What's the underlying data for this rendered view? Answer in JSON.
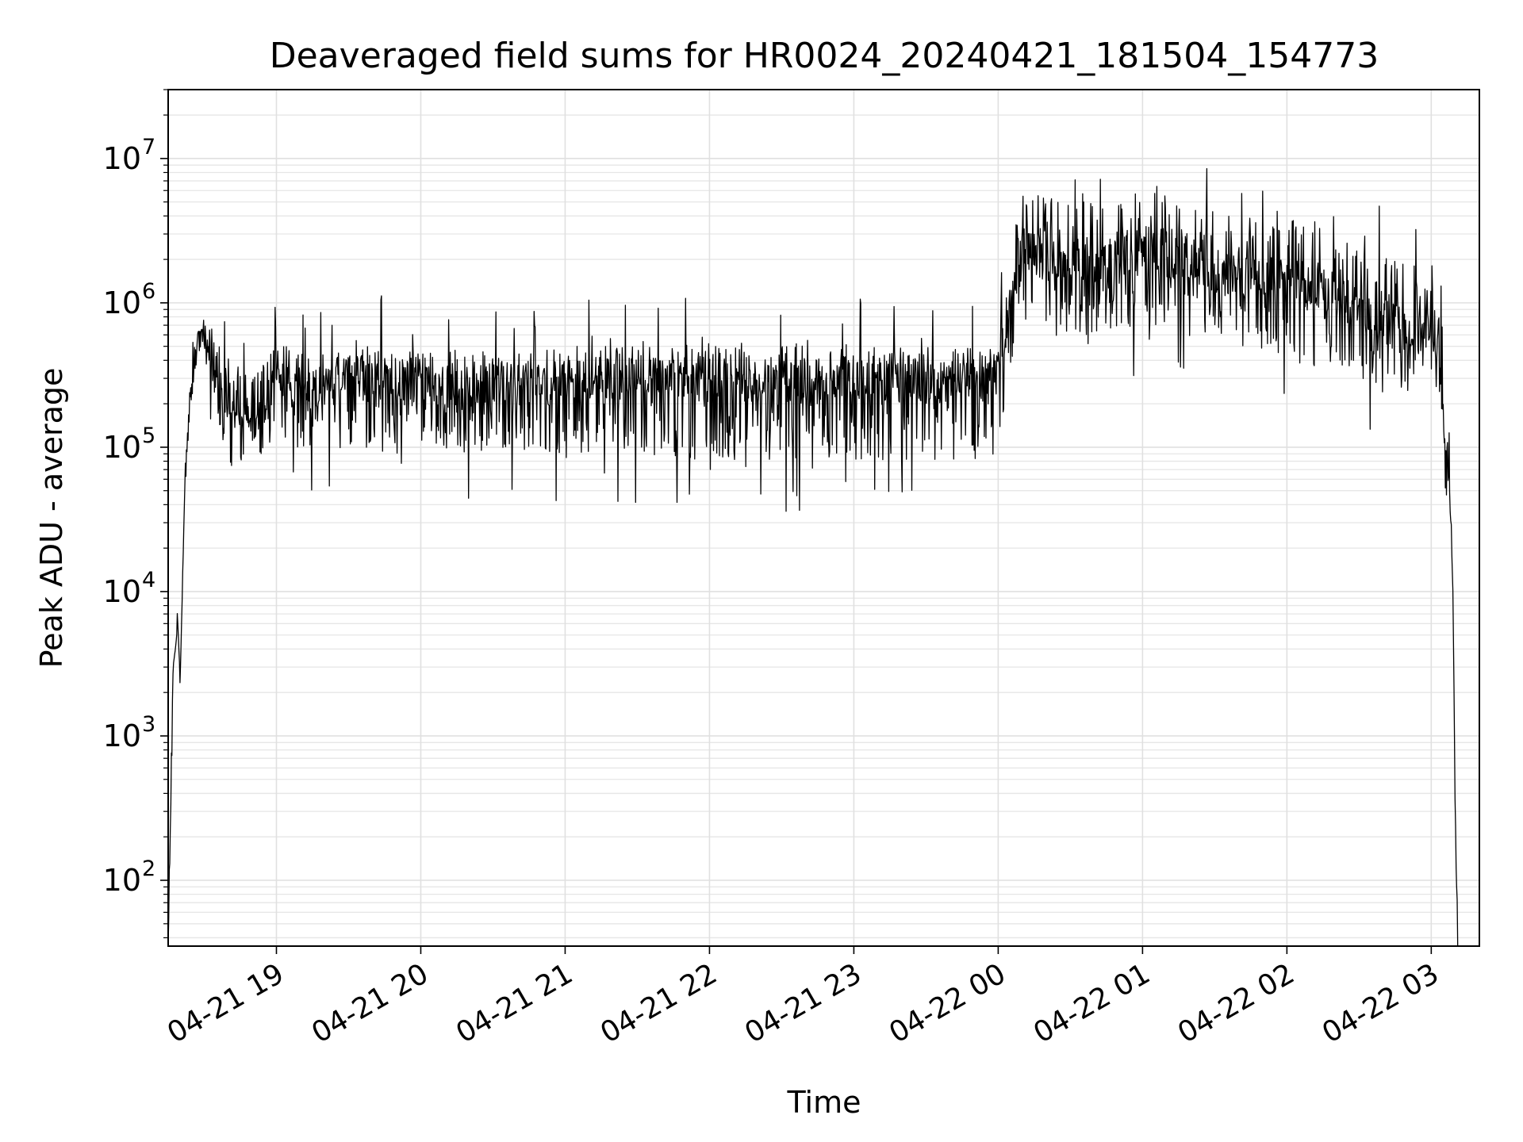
{
  "chart_data": {
    "type": "line",
    "title": "Deaveraged field sums for HR0024_20240421_181504_154773",
    "xlabel": "Time",
    "ylabel": "Peak ADU - average",
    "yscale": "log",
    "xlim": [
      "2024-04-21 18:15",
      "2024-04-22 03:20"
    ],
    "ylim": [
      35,
      30000000
    ],
    "grid": true,
    "line_color": "#000000",
    "x_ticks": [
      {
        "t": "2024-04-21 19:00",
        "label": "04-21 19"
      },
      {
        "t": "2024-04-21 20:00",
        "label": "04-21 20"
      },
      {
        "t": "2024-04-21 21:00",
        "label": "04-21 21"
      },
      {
        "t": "2024-04-21 22:00",
        "label": "04-21 22"
      },
      {
        "t": "2024-04-21 23:00",
        "label": "04-21 23"
      },
      {
        "t": "2024-04-22 00:00",
        "label": "04-22 00"
      },
      {
        "t": "2024-04-22 01:00",
        "label": "04-22 01"
      },
      {
        "t": "2024-04-22 02:00",
        "label": "04-22 02"
      },
      {
        "t": "2024-04-22 03:00",
        "label": "04-22 03"
      }
    ],
    "y_ticks": [
      {
        "value": 100,
        "label": "10",
        "exp": "2"
      },
      {
        "value": 1000,
        "label": "10",
        "exp": "3"
      },
      {
        "value": 10000,
        "label": "10",
        "exp": "4"
      },
      {
        "value": 100000,
        "label": "10",
        "exp": "5"
      },
      {
        "value": 1000000,
        "label": "10",
        "exp": "6"
      },
      {
        "value": 10000000,
        "label": "10",
        "exp": "7"
      }
    ],
    "series": [
      {
        "x": [
          "2024-04-21 18:15",
          "2024-04-21 18:16",
          "2024-04-21 18:17",
          "2024-04-21 18:18",
          "2024-04-21 18:19",
          "2024-04-21 18:20",
          "2024-04-21 18:22",
          "2024-04-21 18:24",
          "2024-04-21 18:27",
          "2024-04-21 18:30",
          "2024-04-21 18:33",
          "2024-04-21 18:36",
          "2024-04-21 18:40",
          "2024-04-21 18:45",
          "2024-04-21 18:50",
          "2024-04-21 18:55",
          "2024-04-21 19:00",
          "2024-04-21 19:05",
          "2024-04-21 19:10",
          "2024-04-21 19:20",
          "2024-04-21 19:30",
          "2024-04-21 19:45",
          "2024-04-21 20:00",
          "2024-04-21 20:15",
          "2024-04-21 20:30",
          "2024-04-21 20:45",
          "2024-04-21 21:00",
          "2024-04-21 21:30",
          "2024-04-21 22:00",
          "2024-04-21 22:30",
          "2024-04-21 23:00",
          "2024-04-21 23:30",
          "2024-04-21 23:50",
          "2024-04-22 00:00",
          "2024-04-22 00:05",
          "2024-04-22 00:10",
          "2024-04-22 00:20",
          "2024-04-22 00:40",
          "2024-04-22 01:00",
          "2024-04-22 01:20",
          "2024-04-22 01:40",
          "2024-04-22 02:00",
          "2024-04-22 02:15",
          "2024-04-22 02:30",
          "2024-04-22 02:45",
          "2024-04-22 02:55",
          "2024-04-22 03:00",
          "2024-04-22 03:03",
          "2024-04-22 03:06",
          "2024-04-22 03:08",
          "2024-04-22 03:09",
          "2024-04-22 03:10",
          "2024-04-22 03:11"
        ],
        "y": [
          35,
          250,
          3000,
          4000,
          6000,
          2500,
          60000,
          200000,
          550000,
          600000,
          450000,
          250000,
          200000,
          180000,
          150000,
          200000,
          250000,
          280000,
          250000,
          250000,
          300000,
          280000,
          280000,
          260000,
          270000,
          280000,
          280000,
          300000,
          320000,
          280000,
          300000,
          280000,
          300000,
          320000,
          1000000,
          2500000,
          2000000,
          1800000,
          2500000,
          2000000,
          1500000,
          1500000,
          1200000,
          900000,
          700000,
          600000,
          800000,
          500000,
          100000,
          50000,
          10000,
          300,
          35
        ],
        "lower": [
          35,
          250,
          3000,
          4000,
          6000,
          2500,
          60000,
          150000,
          450000,
          500000,
          300000,
          130000,
          100000,
          80000,
          90000,
          90000,
          100000,
          90000,
          90000,
          100000,
          90000,
          90000,
          90000,
          90000,
          90000,
          90000,
          90000,
          90000,
          80000,
          80000,
          80000,
          80000,
          80000,
          100000,
          350000,
          800000,
          600000,
          550000,
          700000,
          600000,
          500000,
          400000,
          350000,
          300000,
          250000,
          250000,
          250000,
          200000,
          40000,
          30000,
          10000,
          300,
          35
        ],
        "upper": [
          35,
          250,
          3000,
          4000,
          6000,
          2500,
          60000,
          260000,
          650000,
          700000,
          700000,
          550000,
          500000,
          450000,
          400000,
          480000,
          500000,
          500000,
          450000,
          480000,
          500000,
          500000,
          500000,
          480000,
          500000,
          500000,
          500000,
          500000,
          550000,
          500000,
          520000,
          480000,
          500000,
          500000,
          2500000,
          6000000,
          5500000,
          5000000,
          6000000,
          5000000,
          4000000,
          4000000,
          3500000,
          2500000,
          2000000,
          1800000,
          2200000,
          1400000,
          300000,
          150000,
          10000,
          300,
          35
        ]
      }
    ]
  }
}
